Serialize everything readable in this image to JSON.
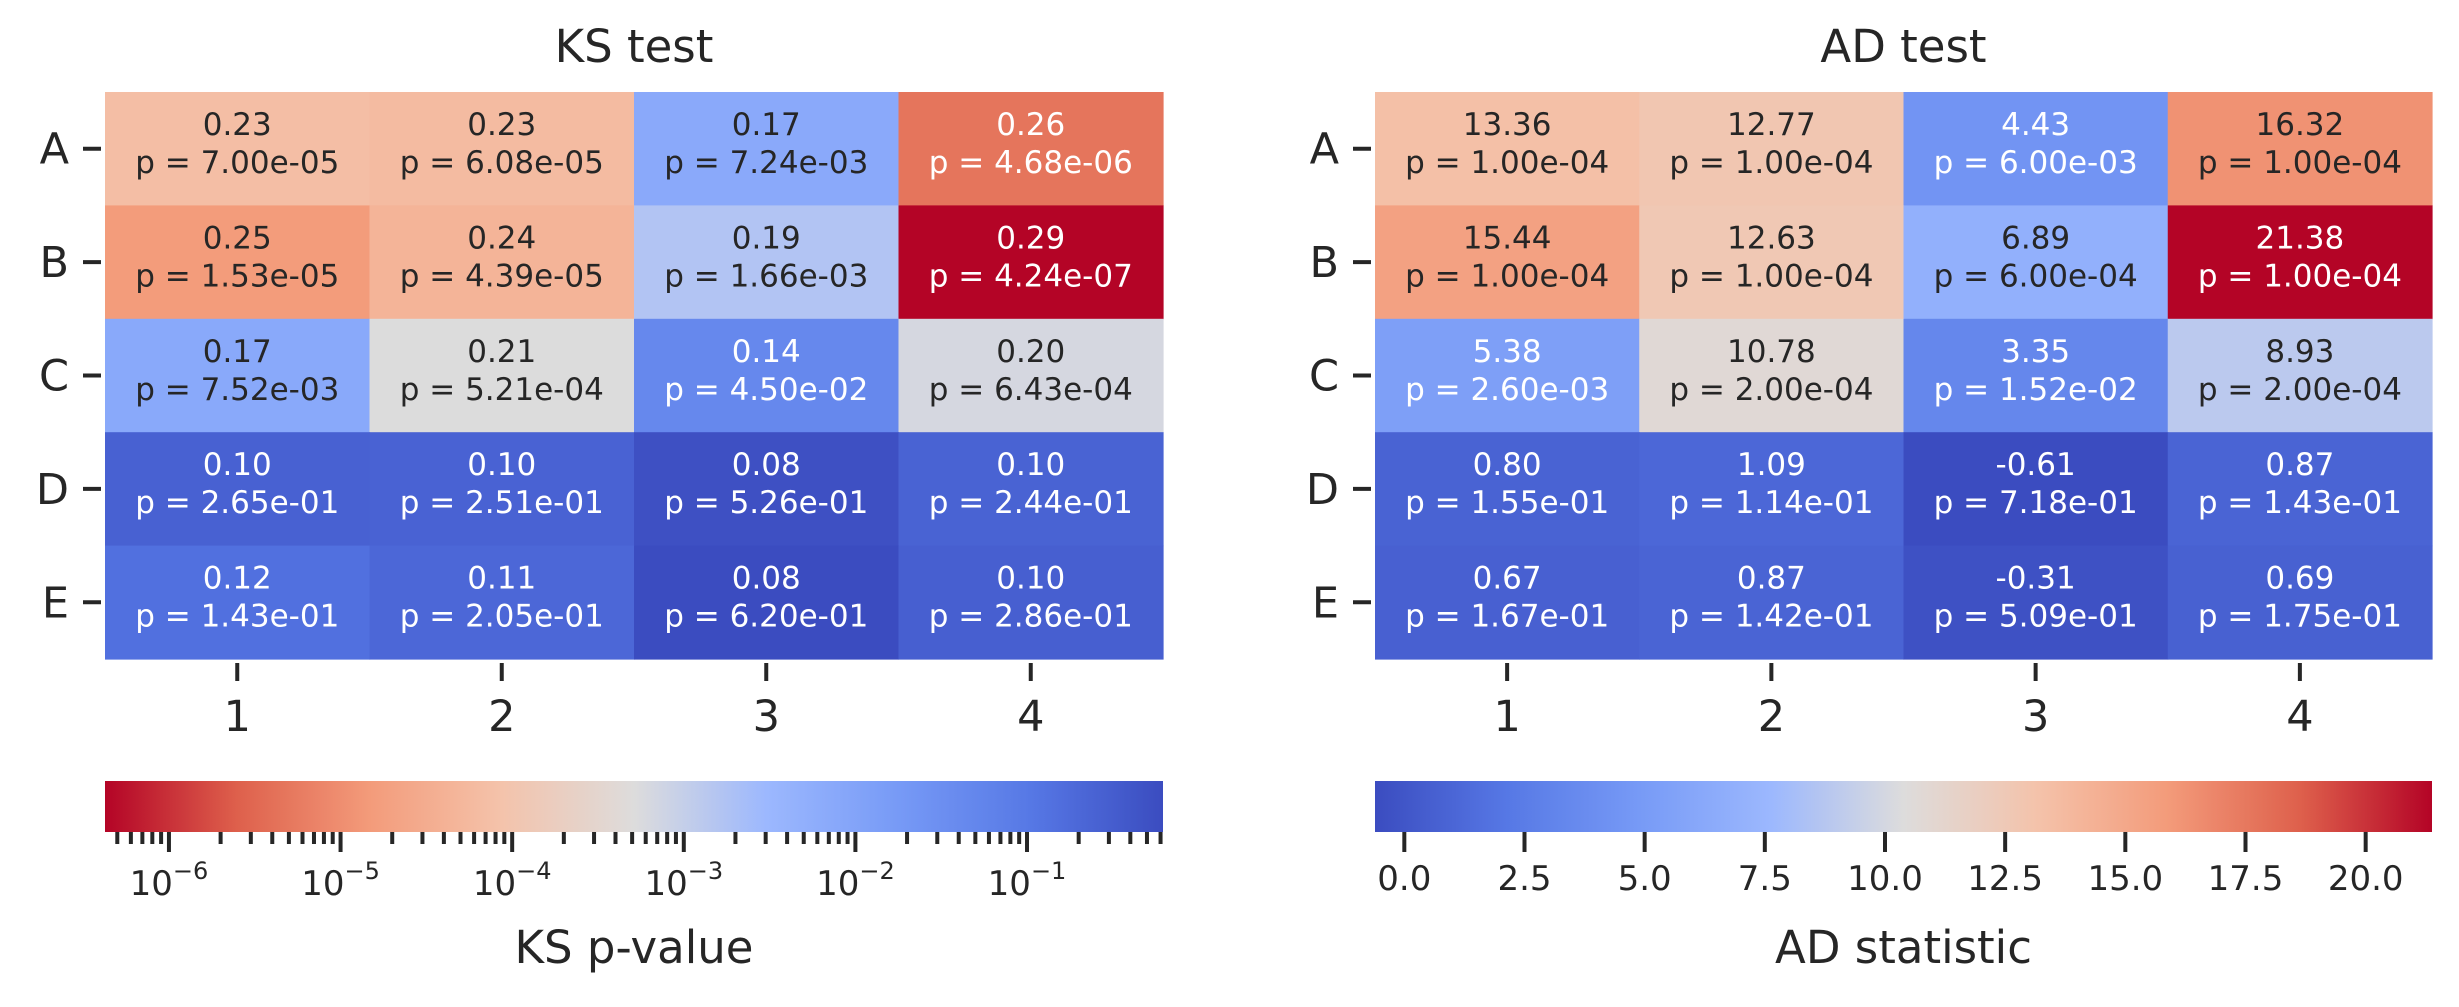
{
  "chart_data": [
    {
      "type": "heatmap",
      "title": "KS test",
      "rows": [
        "A",
        "B",
        "C",
        "D",
        "E"
      ],
      "cols": [
        "1",
        "2",
        "3",
        "4"
      ],
      "statistic": [
        [
          0.23,
          0.23,
          0.17,
          0.26
        ],
        [
          0.25,
          0.24,
          0.19,
          0.29
        ],
        [
          0.17,
          0.21,
          0.14,
          0.2
        ],
        [
          0.1,
          0.1,
          0.08,
          0.1
        ],
        [
          0.12,
          0.11,
          0.08,
          0.1
        ]
      ],
      "p_values": [
        [
          7e-05,
          6.08e-05,
          0.00724,
          4.68e-06
        ],
        [
          1.53e-05,
          4.39e-05,
          0.00166,
          4.24e-07
        ],
        [
          0.00752,
          0.000521,
          0.045,
          0.000643
        ],
        [
          0.265,
          0.251,
          0.526,
          0.244
        ],
        [
          0.143,
          0.205,
          0.62,
          0.286
        ]
      ],
      "annotations": [
        [
          "0.23\np = 7.00e-05",
          "0.23\np = 6.08e-05",
          "0.17\np = 7.24e-03",
          "0.26\np = 4.68e-06"
        ],
        [
          "0.25\np = 1.53e-05",
          "0.24\np = 4.39e-05",
          "0.19\np = 1.66e-03",
          "0.29\np = 4.24e-07"
        ],
        [
          "0.17\np = 7.52e-03",
          "0.21\np = 5.21e-04",
          "0.14\np = 4.50e-02",
          "0.20\np = 6.43e-04"
        ],
        [
          "0.10\np = 2.65e-01",
          "0.10\np = 2.51e-01",
          "0.08\np = 5.26e-01",
          "0.10\np = 2.44e-01"
        ],
        [
          "0.12\np = 1.43e-01",
          "0.11\np = 2.05e-01",
          "0.08\np = 6.20e-01",
          "0.10\np = 2.86e-01"
        ]
      ],
      "color_by": "p_values",
      "colormap": "coolwarm_r",
      "colorbar": {
        "label": "KS p-value",
        "scale": "log",
        "range": [
          4.24e-07,
          0.62
        ],
        "ticks": [
          1e-06,
          1e-05,
          0.0001,
          0.001,
          0.01,
          0.1
        ],
        "tick_labels": [
          {
            "base": "10",
            "exp": "−6"
          },
          {
            "base": "10",
            "exp": "−5"
          },
          {
            "base": "10",
            "exp": "−4"
          },
          {
            "base": "10",
            "exp": "−3"
          },
          {
            "base": "10",
            "exp": "−2"
          },
          {
            "base": "10",
            "exp": "−1"
          }
        ],
        "orientation": "horizontal",
        "placement": "bottom"
      }
    },
    {
      "type": "heatmap",
      "title": "AD test",
      "rows": [
        "A",
        "B",
        "C",
        "D",
        "E"
      ],
      "cols": [
        "1",
        "2",
        "3",
        "4"
      ],
      "statistic": [
        [
          13.36,
          12.77,
          4.43,
          16.32
        ],
        [
          15.44,
          12.63,
          6.89,
          21.38
        ],
        [
          5.38,
          10.78,
          3.35,
          8.93
        ],
        [
          0.8,
          1.09,
          -0.61,
          0.87
        ],
        [
          0.67,
          0.87,
          -0.31,
          0.69
        ]
      ],
      "p_values": [
        [
          0.0001,
          0.0001,
          0.006,
          0.0001
        ],
        [
          0.0001,
          0.0001,
          0.0006,
          0.0001
        ],
        [
          0.0026,
          0.0002,
          0.0152,
          0.0002
        ],
        [
          0.155,
          0.114,
          0.718,
          0.143
        ],
        [
          0.167,
          0.142,
          0.509,
          0.175
        ]
      ],
      "annotations": [
        [
          "13.36\np = 1.00e-04",
          "12.77\np = 1.00e-04",
          "4.43\np = 6.00e-03",
          "16.32\np = 1.00e-04"
        ],
        [
          "15.44\np = 1.00e-04",
          "12.63\np = 1.00e-04",
          "6.89\np = 6.00e-04",
          "21.38\np = 1.00e-04"
        ],
        [
          "5.38\np = 2.60e-03",
          "10.78\np = 2.00e-04",
          "3.35\np = 1.52e-02",
          "8.93\np = 2.00e-04"
        ],
        [
          "0.80\np = 1.55e-01",
          "1.09\np = 1.14e-01",
          "-0.61\np = 7.18e-01",
          "0.87\np = 1.43e-01"
        ],
        [
          "0.67\np = 1.67e-01",
          "0.87\np = 1.42e-01",
          "-0.31\np = 5.09e-01",
          "0.69\np = 1.75e-01"
        ]
      ],
      "color_by": "statistic",
      "colormap": "coolwarm",
      "colorbar": {
        "label": "AD statistic",
        "scale": "linear",
        "range": [
          -0.61,
          21.38
        ],
        "ticks": [
          0.0,
          2.5,
          5.0,
          7.5,
          10.0,
          12.5,
          15.0,
          17.5,
          20.0
        ],
        "tick_labels": [
          "0.0",
          "2.5",
          "5.0",
          "7.5",
          "10.0",
          "12.5",
          "15.0",
          "17.5",
          "20.0"
        ],
        "orientation": "horizontal",
        "placement": "bottom"
      }
    }
  ]
}
